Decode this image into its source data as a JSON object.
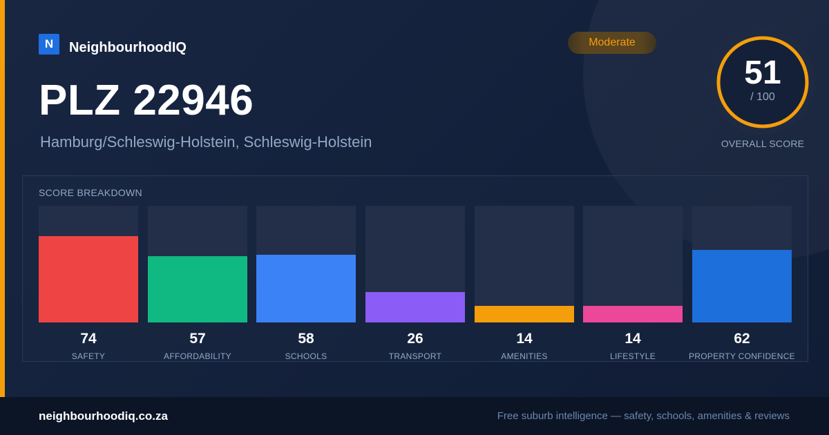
{
  "brand": {
    "logo_letter": "N",
    "name": "NeighbourhoodIQ"
  },
  "location": {
    "title": "PLZ 22946",
    "subtitle": "Hamburg/Schleswig-Holstein, Schleswig-Holstein"
  },
  "rating_badge": "Moderate",
  "overall": {
    "score": "51",
    "max_label": "/ 100",
    "label": "OVERALL SCORE",
    "score_fraction": 0.51,
    "ring_color": "#f59e0b"
  },
  "breakdown": {
    "title": "SCORE BREAKDOWN",
    "items": [
      {
        "label": "SAFETY",
        "value": "74",
        "color": "#ef4444"
      },
      {
        "label": "AFFORDABILITY",
        "value": "57",
        "color": "#10b981"
      },
      {
        "label": "SCHOOLS",
        "value": "58",
        "color": "#3b82f6"
      },
      {
        "label": "TRANSPORT",
        "value": "26",
        "color": "#8b5cf6"
      },
      {
        "label": "AMENITIES",
        "value": "14",
        "color": "#f59e0b"
      },
      {
        "label": "LIFESTYLE",
        "value": "14",
        "color": "#ec4899"
      },
      {
        "label": "PROPERTY CONFIDENCE",
        "value": "62",
        "color": "#1d6fdc"
      }
    ]
  },
  "footer": {
    "domain": "neighbourhoodiq.co.za",
    "tagline": "Free suburb intelligence — safety, schools, amenities & reviews"
  },
  "colors": {
    "accent": "#f59e0b",
    "background": "#142038",
    "muted_text": "#93a8c6"
  }
}
